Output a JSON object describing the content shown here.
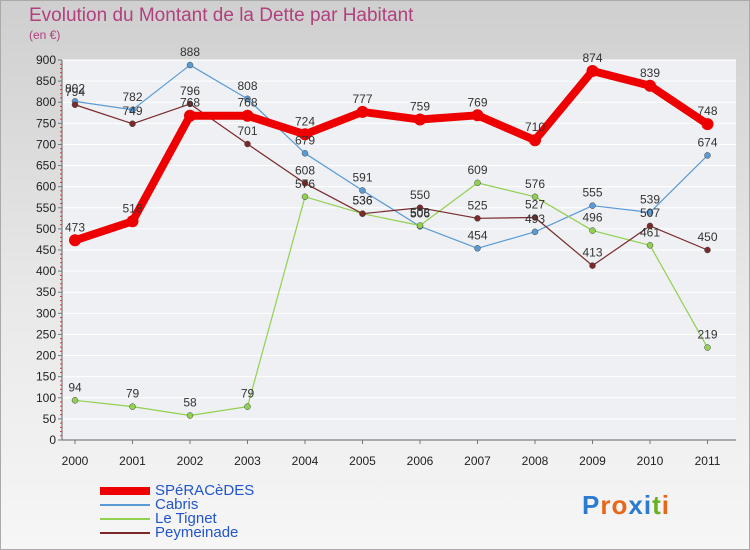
{
  "title": "Evolution du Montant de la Dette par Habitant",
  "subtitle": "(en €)",
  "logo_text": "Proxiti",
  "logo_colors": [
    "#2b7bd1",
    "#e8661a",
    "#e8661a",
    "#2b7bd1",
    "#2b7bd1",
    "#6ab023",
    "#e8661a"
  ],
  "chart_data": {
    "type": "line",
    "title": "Evolution du Montant de la Dette par Habitant",
    "subtitle": "(en €)",
    "x": [
      "2000",
      "2001",
      "2002",
      "2003",
      "2004",
      "2005",
      "2006",
      "2007",
      "2008",
      "2009",
      "2010",
      "2011"
    ],
    "ylim": [
      0,
      900
    ],
    "y_ticks": [
      0,
      50,
      100,
      150,
      200,
      250,
      300,
      350,
      400,
      450,
      500,
      550,
      600,
      650,
      700,
      750,
      800,
      850,
      900
    ],
    "grid": "horizontal",
    "legend_position": "bottom-left",
    "series": [
      {
        "name": "SPéRACèDES",
        "color": "#ee0000",
        "width": 8,
        "values": [
          473,
          518,
          768,
          768,
          724,
          777,
          759,
          769,
          710,
          874,
          839,
          748
        ]
      },
      {
        "name": "Cabris",
        "color": "#5b9bd5",
        "width": 1.2,
        "values": [
          802,
          782,
          888,
          808,
          679,
          591,
          506,
          454,
          493,
          555,
          539,
          674
        ]
      },
      {
        "name": "Le Tignet",
        "color": "#92d050",
        "width": 1.2,
        "values": [
          94,
          79,
          58,
          79,
          576,
          536,
          508,
          609,
          576,
          496,
          461,
          219
        ]
      },
      {
        "name": "Peymeinade",
        "color": "#7a2a2a",
        "width": 1.2,
        "values": [
          794,
          749,
          796,
          701,
          608,
          536,
          550,
          525,
          527,
          413,
          507,
          450
        ]
      }
    ]
  }
}
